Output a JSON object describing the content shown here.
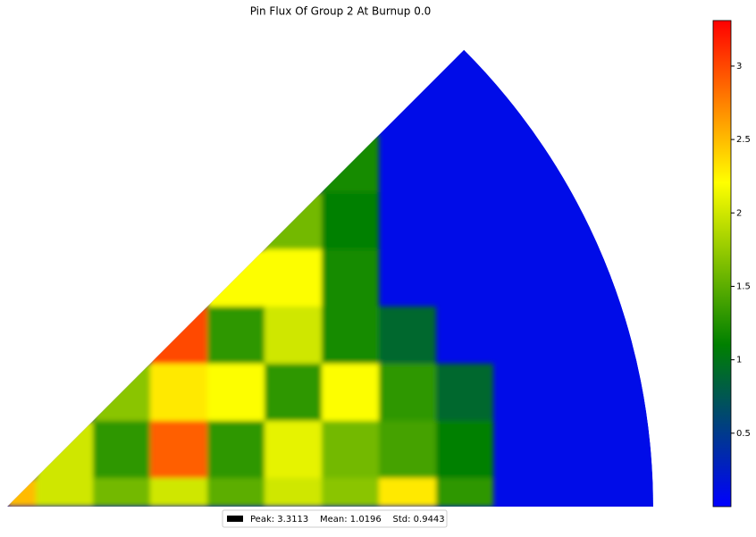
{
  "chart_data": {
    "type": "heatmap",
    "title": "Pin Flux Of Group 2 At Burnup 0.0",
    "legend_label": "Peak: 3.3113    Mean: 1.0196    Std: 0.9443",
    "colormap": [
      "#0000ff",
      "#008000",
      "#ffff00",
      "#ff0000"
    ],
    "reflector_value": 0.1,
    "values": [
      [
        2.5,
        2.0,
        1.6,
        2.0,
        1.5,
        2.0,
        1.7,
        2.3,
        1.3
      ],
      [
        null,
        2.0,
        1.3,
        2.9,
        1.3,
        2.1,
        1.6,
        1.4,
        1.1
      ],
      [
        null,
        null,
        1.7,
        2.3,
        2.2,
        1.3,
        2.2,
        1.3,
        0.9
      ],
      [
        null,
        null,
        null,
        3.0,
        1.3,
        2.0,
        1.2,
        0.9,
        null
      ],
      [
        null,
        null,
        null,
        null,
        2.2,
        2.2,
        1.2,
        null,
        null
      ],
      [
        null,
        null,
        null,
        null,
        null,
        1.6,
        1.1,
        null,
        null
      ],
      [
        null,
        null,
        null,
        null,
        null,
        null,
        1.2,
        null,
        null
      ]
    ],
    "ylim": [
      0,
      3.31
    ],
    "yticks": [
      0.5,
      1.0,
      1.5,
      2.0,
      2.5,
      3.0
    ]
  }
}
